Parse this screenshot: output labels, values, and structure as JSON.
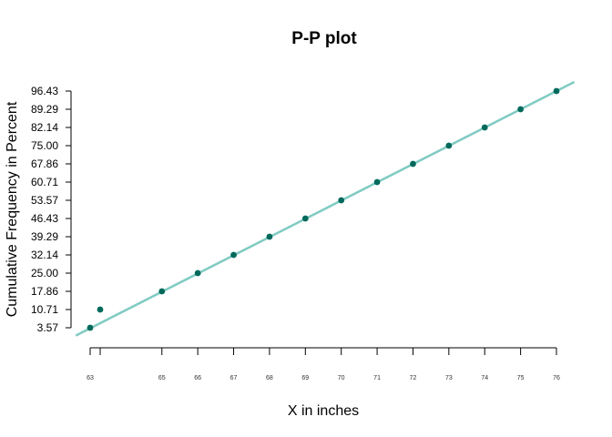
{
  "chart_data": {
    "type": "scatter",
    "title": "P-P plot",
    "xlabel": "X in inches",
    "ylabel": "Cumulative Frequency in Percent",
    "x_ticks": [
      63,
      64,
      65,
      66,
      67,
      68,
      69,
      70,
      71,
      72,
      73,
      74,
      75,
      76
    ],
    "x_tick_labels": [
      "63",
      "",
      "65",
      "66",
      "67",
      "68",
      "69",
      "70",
      "71",
      "72",
      "73",
      "74",
      "75",
      "76"
    ],
    "y_ticks": [
      3.57,
      10.71,
      17.86,
      25.0,
      32.14,
      39.29,
      46.43,
      53.57,
      60.71,
      67.86,
      75.0,
      82.14,
      89.29,
      96.43
    ],
    "y_tick_labels": [
      "3.57",
      "10.71",
      "17.86",
      "25.00",
      "32.14",
      "39.29",
      "46.43",
      "53.57",
      "60.71",
      "67.86",
      "75.00",
      "82.14",
      "89.29",
      "96.43"
    ],
    "points": [
      {
        "x": 63,
        "y": 3.57
      },
      {
        "x": 63.3,
        "y": 10.71
      },
      {
        "x": 65,
        "y": 17.86
      },
      {
        "x": 66,
        "y": 25.0
      },
      {
        "x": 67,
        "y": 32.14
      },
      {
        "x": 68,
        "y": 39.29
      },
      {
        "x": 69,
        "y": 46.43
      },
      {
        "x": 70,
        "y": 53.57
      },
      {
        "x": 71,
        "y": 60.71
      },
      {
        "x": 72,
        "y": 67.86
      },
      {
        "x": 73,
        "y": 75.0
      },
      {
        "x": 74,
        "y": 82.14
      },
      {
        "x": 75,
        "y": 89.29
      },
      {
        "x": 76,
        "y": 96.43
      }
    ],
    "reference_line": {
      "x": [
        62.6,
        76.5
      ],
      "y": [
        0.5,
        100.0
      ]
    },
    "point_color": "#00695c",
    "line_color": "#80cbc4",
    "grid": false
  }
}
